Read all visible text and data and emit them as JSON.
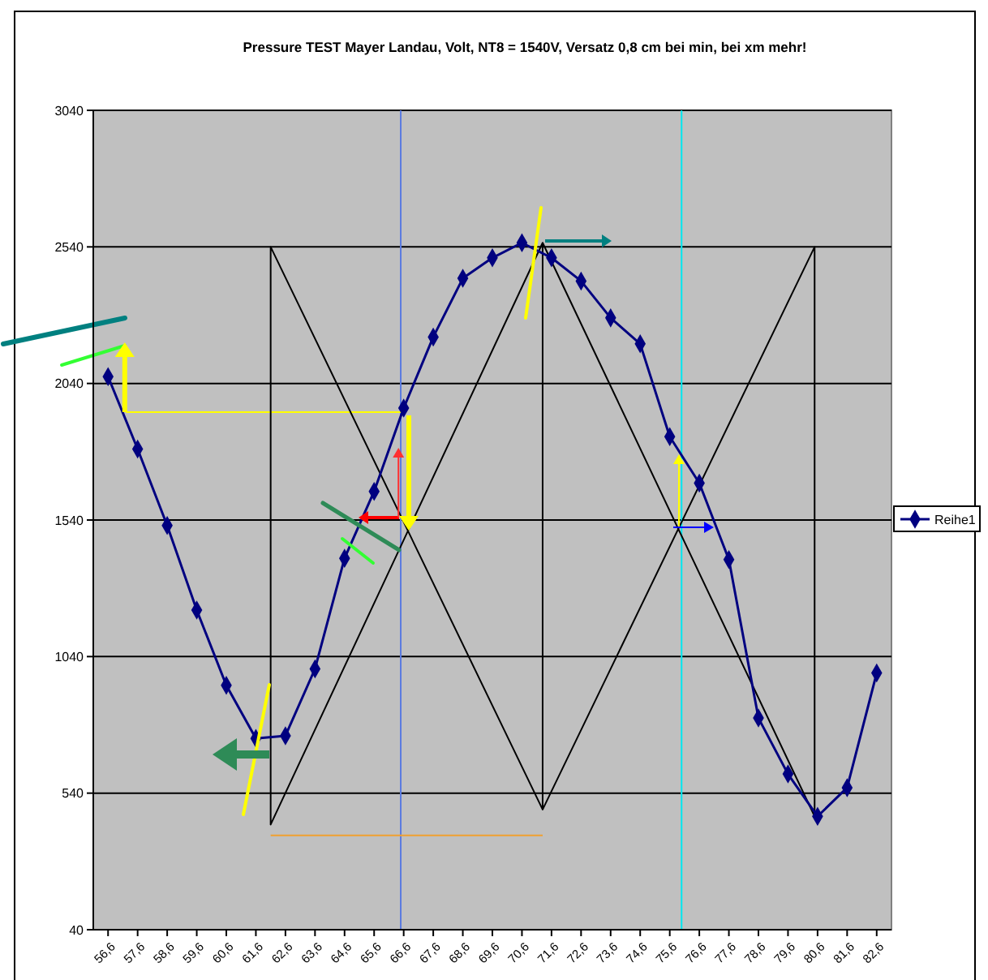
{
  "chart_data": {
    "type": "line",
    "title": "Pressure TEST Mayer Landau, Volt, NT8 = 1540V,    Versatz 0,8 cm bei min, bei xm mehr!",
    "x": [
      56.6,
      57.6,
      58.6,
      59.6,
      60.6,
      61.6,
      62.6,
      63.6,
      64.6,
      65.6,
      66.6,
      67.6,
      68.6,
      69.6,
      70.6,
      71.6,
      72.6,
      73.6,
      74.6,
      75.6,
      76.6,
      77.6,
      78.6,
      79.6,
      80.6,
      81.6,
      82.6
    ],
    "xlim": [
      56.1,
      83.1
    ],
    "xticks": [
      {
        "value": 56.6,
        "label": "56,6"
      },
      {
        "value": 57.6,
        "label": "57,6"
      },
      {
        "value": 58.6,
        "label": "58,6"
      },
      {
        "value": 59.6,
        "label": "59,6"
      },
      {
        "value": 60.6,
        "label": "60,6"
      },
      {
        "value": 61.6,
        "label": "61,6"
      },
      {
        "value": 62.6,
        "label": "62,6"
      },
      {
        "value": 63.6,
        "label": "63,6"
      },
      {
        "value": 64.6,
        "label": "64,6"
      },
      {
        "value": 65.6,
        "label": "65,6"
      },
      {
        "value": 66.6,
        "label": "66,6"
      },
      {
        "value": 67.6,
        "label": "67,6"
      },
      {
        "value": 68.6,
        "label": "68,6"
      },
      {
        "value": 69.6,
        "label": "69,6"
      },
      {
        "value": 70.6,
        "label": "70,6"
      },
      {
        "value": 71.6,
        "label": "71,6"
      },
      {
        "value": 72.6,
        "label": "72,6"
      },
      {
        "value": 73.6,
        "label": "73,6"
      },
      {
        "value": 74.6,
        "label": "74,6"
      },
      {
        "value": 75.6,
        "label": "75,6"
      },
      {
        "value": 76.6,
        "label": "76,6"
      },
      {
        "value": 77.6,
        "label": "77,6"
      },
      {
        "value": 78.6,
        "label": "78,6"
      },
      {
        "value": 79.6,
        "label": "79,6"
      },
      {
        "value": 80.6,
        "label": "80,6"
      },
      {
        "value": 81.6,
        "label": "81,6"
      },
      {
        "value": 82.6,
        "label": "82,6"
      }
    ],
    "ylim": [
      40,
      3040
    ],
    "yticks": [
      40,
      540,
      1040,
      1540,
      2040,
      2540,
      3040
    ],
    "grid": "y",
    "legend": "right",
    "marker": "diamond",
    "line_style": "solid",
    "series": [
      {
        "name": "Reihe1",
        "color": "#000080",
        "values": [
          2065,
          1800,
          1520,
          1210,
          935,
          740,
          750,
          995,
          1400,
          1645,
          1950,
          2210,
          2425,
          2500,
          2555,
          2500,
          2415,
          2280,
          2185,
          1845,
          1675,
          1395,
          815,
          610,
          455,
          560,
          980
        ]
      },
      {
        "type": "line",
        "color": "#000000",
        "marker": "none",
        "x": [
          71.3,
          71.3,
          62.1,
          62.1,
          71.3,
          80.5,
          80.5,
          71.3
        ],
        "values": [
          480,
          2555,
          425,
          2540,
          480,
          2540,
          455,
          2555
        ]
      },
      {
        "type": "line",
        "color": "#f0a030",
        "marker": "none",
        "x": [
          62.1,
          71.3
        ],
        "values": [
          385,
          385
        ]
      },
      {
        "type": "line",
        "color": "#ffff00",
        "marker": "none",
        "x": [
          57.2,
          66.6
        ],
        "values": [
          1935,
          1935
        ]
      }
    ],
    "ref_lines": [
      {
        "axis": "x",
        "value": 66.5,
        "color": "#5a7be0"
      },
      {
        "axis": "x",
        "value": 76.0,
        "color": "#00e8f0"
      }
    ]
  }
}
